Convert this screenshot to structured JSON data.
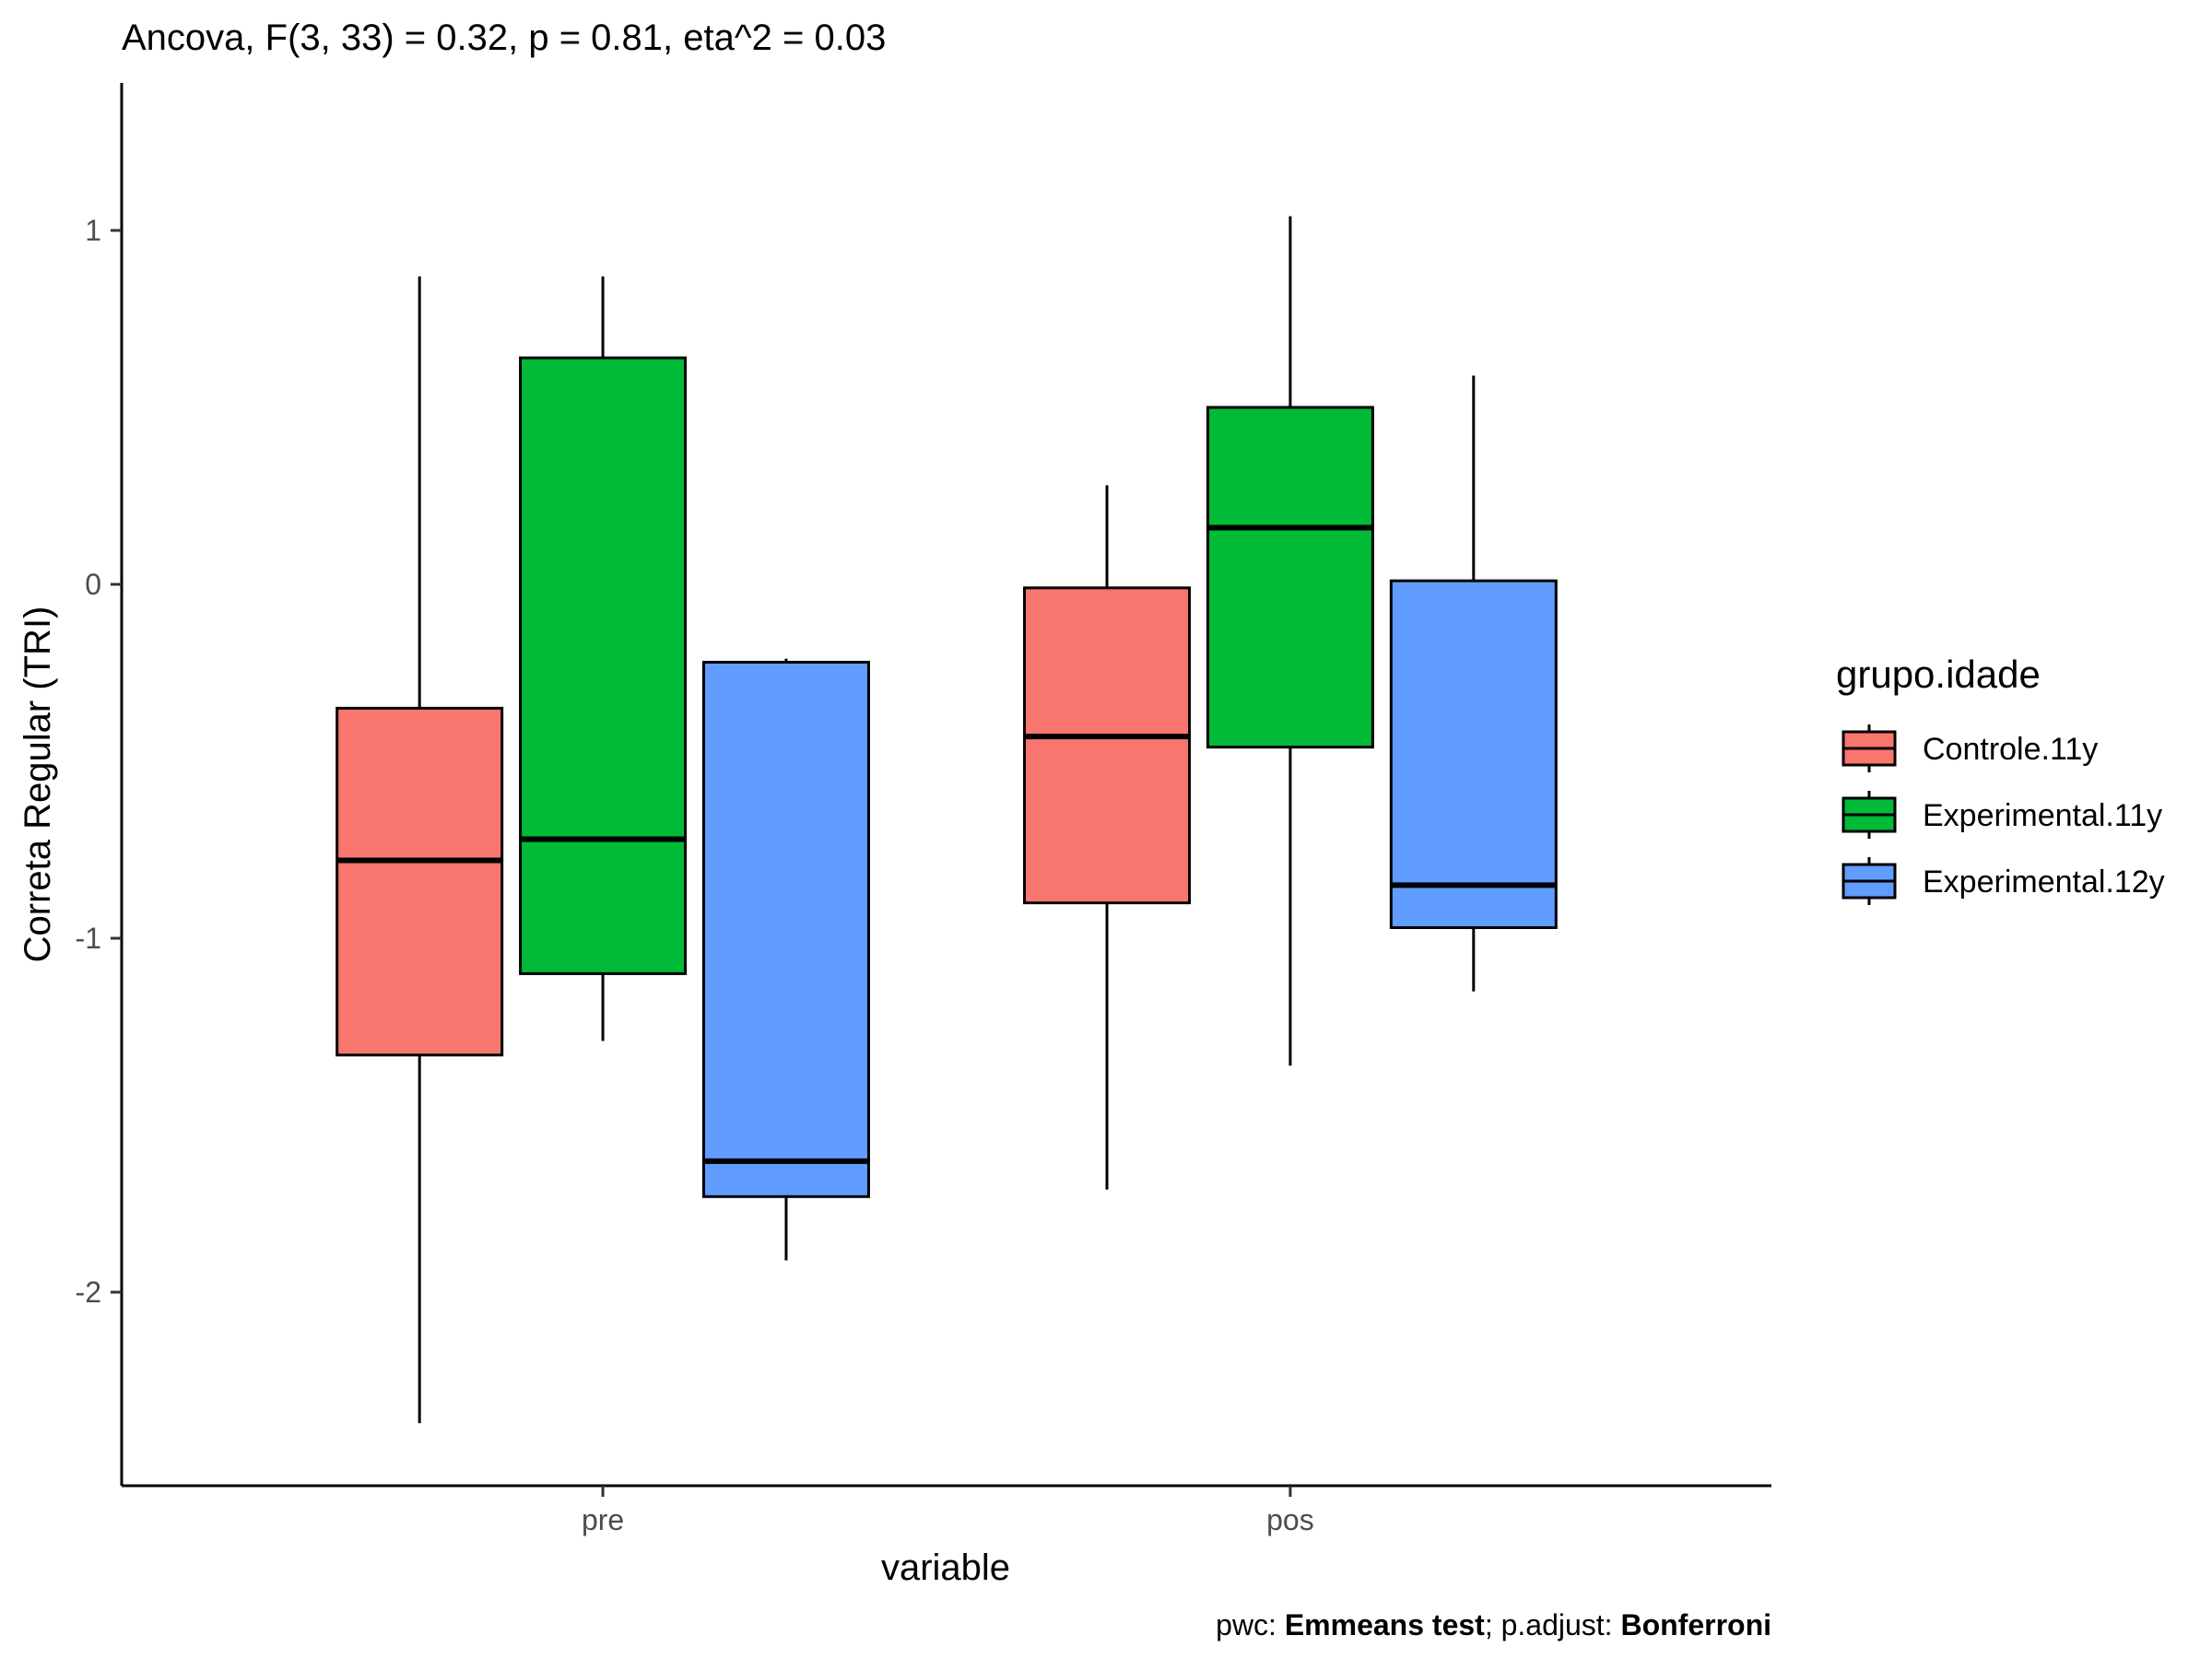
{
  "chart_data": {
    "type": "boxplot",
    "title": "Ancova, F(3, 33) = 0.32, p = 0.81, eta^2 = 0.03",
    "xlabel": "variable",
    "ylabel": "Correta Regular (TRI)",
    "categories": [
      "pre",
      "pos"
    ],
    "yticks": [
      1,
      0,
      -1,
      -2
    ],
    "ylim": [
      -2.55,
      1.42
    ],
    "grid": false,
    "legend": {
      "title": "grupo.idade",
      "position": "right"
    },
    "series": [
      {
        "name": "Controle.11y",
        "color": "#F8766D",
        "boxes": [
          {
            "category": "pre",
            "min": -2.37,
            "q1": -1.33,
            "median": -0.78,
            "q3": -0.35,
            "max": 0.87
          },
          {
            "category": "pos",
            "min": -1.71,
            "q1": -0.9,
            "median": -0.43,
            "q3": -0.01,
            "max": 0.28
          }
        ]
      },
      {
        "name": "Experimental.11y",
        "color": "#00BA38",
        "boxes": [
          {
            "category": "pre",
            "min": -1.29,
            "q1": -1.1,
            "median": -0.72,
            "q3": 0.64,
            "max": 0.87
          },
          {
            "category": "pos",
            "min": -1.36,
            "q1": -0.46,
            "median": 0.16,
            "q3": 0.5,
            "max": 1.04
          }
        ]
      },
      {
        "name": "Experimental.12y",
        "color": "#619CFF",
        "boxes": [
          {
            "category": "pre",
            "min": -1.91,
            "q1": -1.73,
            "median": -1.63,
            "q3": -0.22,
            "max": -0.21
          },
          {
            "category": "pos",
            "min": -1.15,
            "q1": -0.97,
            "median": -0.85,
            "q3": 0.01,
            "max": 0.59
          }
        ]
      }
    ],
    "caption": {
      "prefix": "pwc: ",
      "test": "Emmeans test",
      "sep": "; p.adjust: ",
      "adjust": "Bonferroni"
    }
  }
}
